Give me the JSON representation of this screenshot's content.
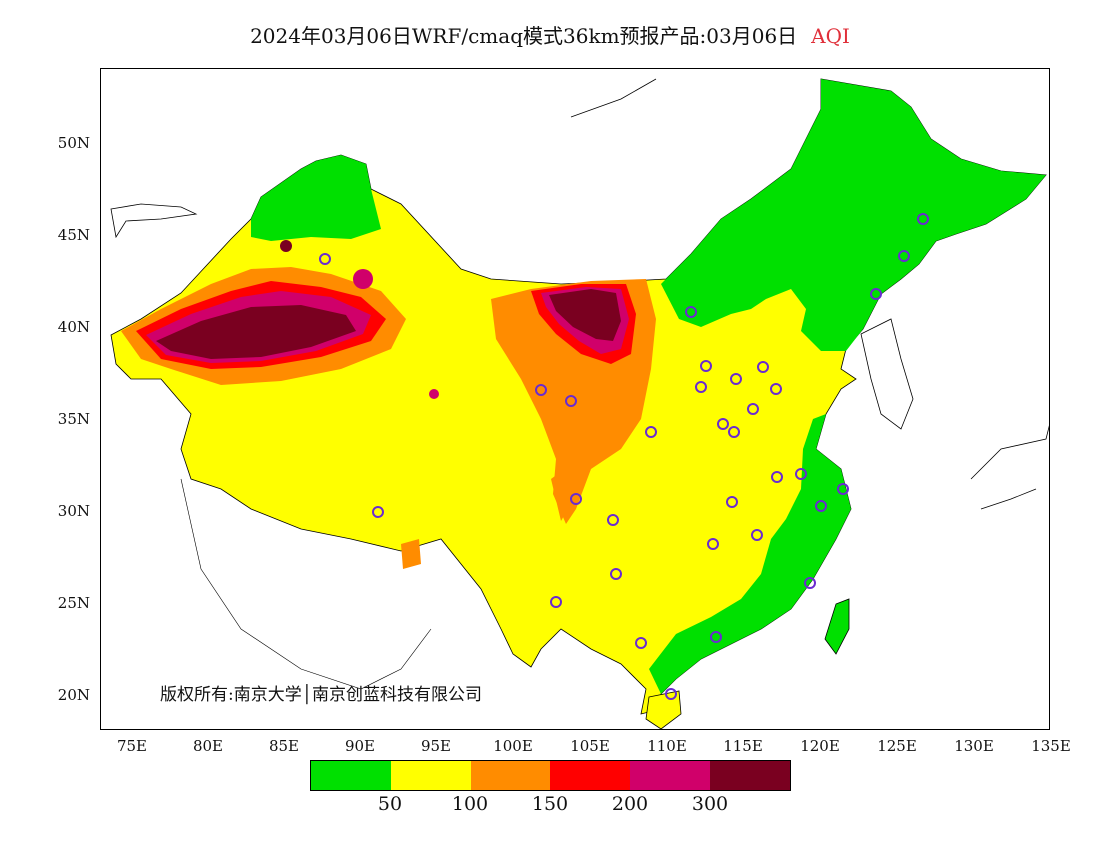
{
  "title": {
    "main": "2024年03月06日WRF/cmaq模式36km预报产品:03月06日",
    "variable": "AQI"
  },
  "axes": {
    "y_labels": [
      "50N",
      "45N",
      "40N",
      "35N",
      "30N",
      "25N",
      "20N"
    ],
    "x_labels": [
      "75E",
      "80E",
      "85E",
      "90E",
      "95E",
      "100E",
      "105E",
      "110E",
      "115E",
      "120E",
      "125E",
      "130E",
      "135E"
    ]
  },
  "copyright": {
    "text": "版权所有:南京大学│南京创蓝科技有限公司"
  },
  "legend": {
    "colors": [
      "#00e000",
      "#ffff00",
      "#ff8c00",
      "#ff0000",
      "#d0006a",
      "#7a0020"
    ],
    "thresholds": [
      "50",
      "100",
      "150",
      "200",
      "300"
    ]
  }
}
